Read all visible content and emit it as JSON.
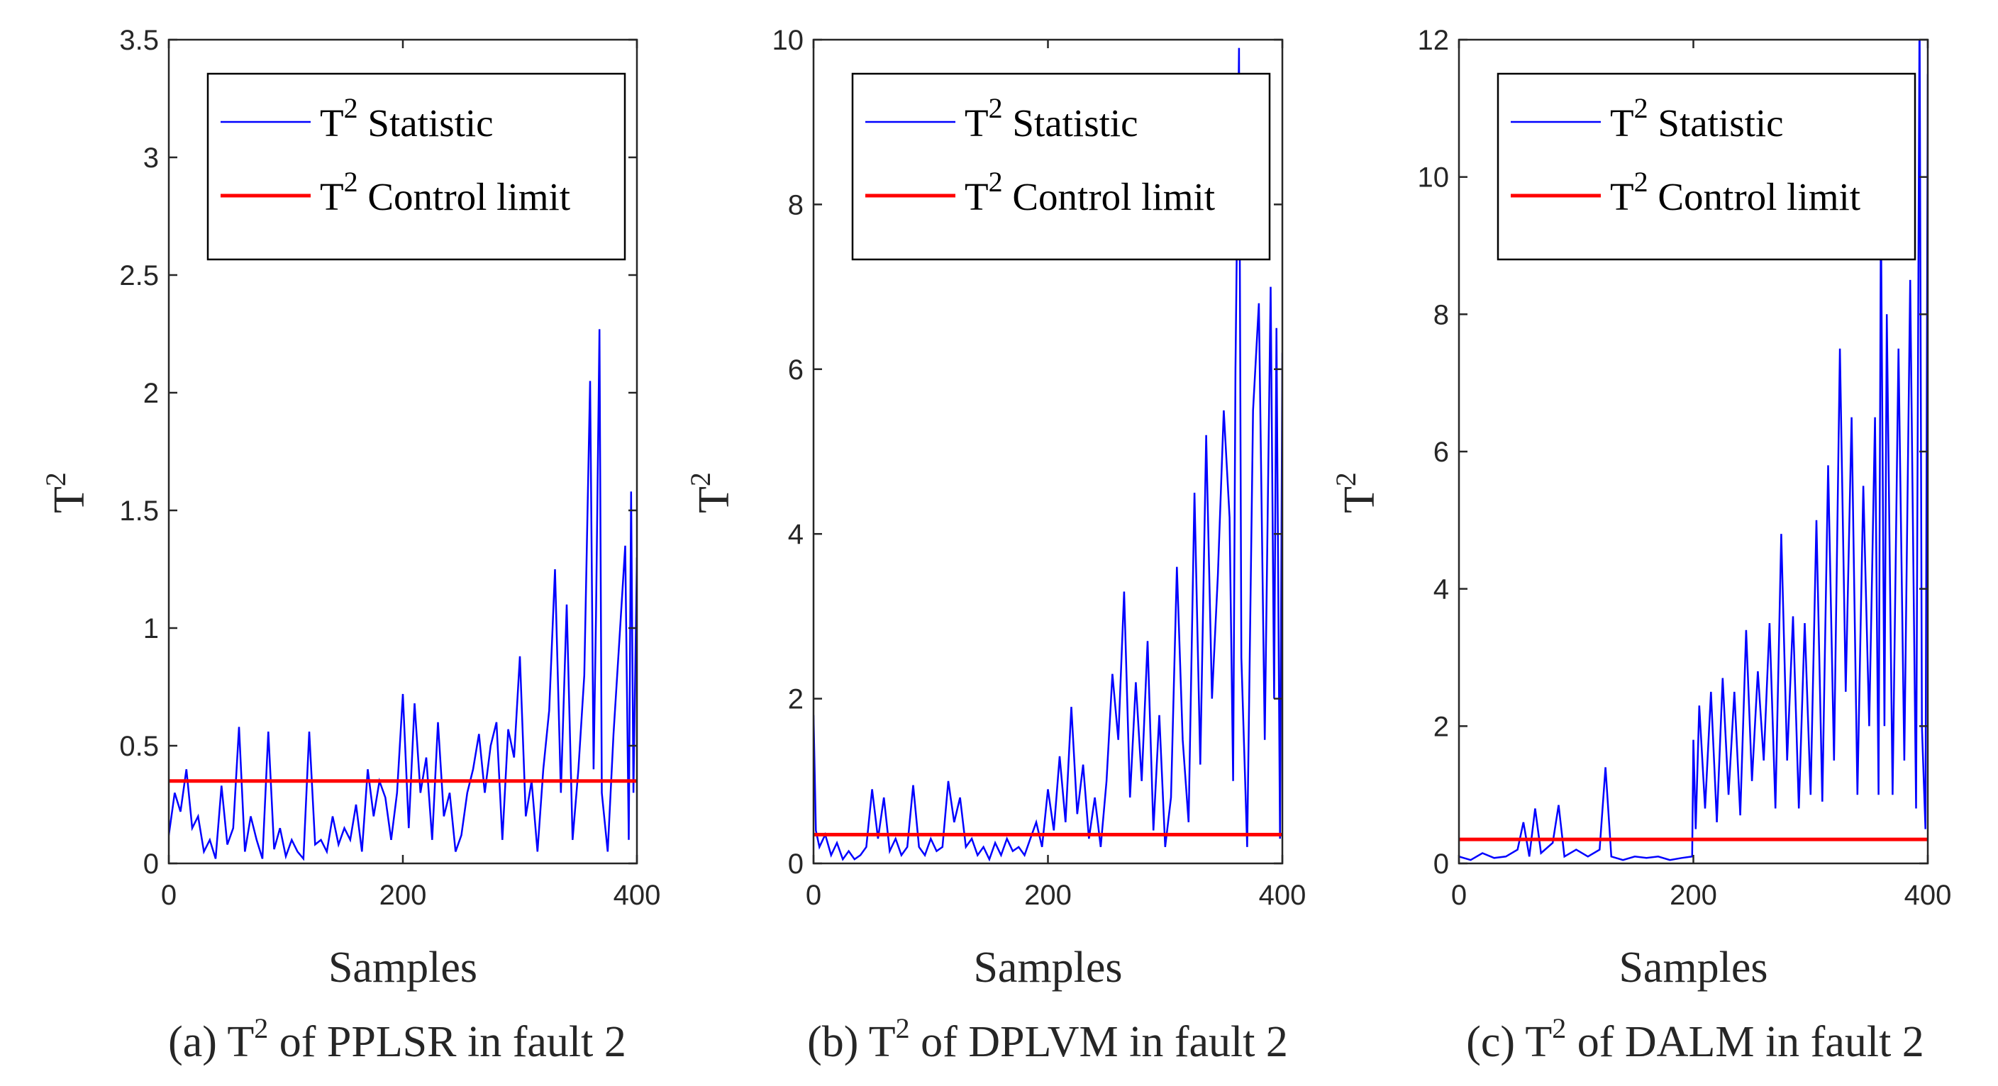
{
  "legend": {
    "statistic_label": "Statistic",
    "limit_label": "Control limit",
    "symbol": "T",
    "superscript": "2"
  },
  "colors": {
    "statistic": "#0000ff",
    "limit": "#ff0000",
    "axis": "#262626"
  },
  "chart_data": [
    {
      "type": "line",
      "caption_prefix": "(a) T",
      "caption_sup": "2",
      "caption_suffix": " of PPLSR in fault 2",
      "xlabel": "Samples",
      "ylabel": "T",
      "ylabel_sup": "2",
      "xlim": [
        0,
        400
      ],
      "ylim": [
        0,
        3.5
      ],
      "xticks": [
        0,
        200,
        400
      ],
      "yticks": [
        0,
        0.5,
        1,
        1.5,
        2,
        2.5,
        3,
        3.5
      ],
      "ytick_labels": [
        "0",
        "0.5",
        "1",
        "1.5",
        "2",
        "2.5",
        "3",
        "3.5"
      ],
      "control_limit": 0.35,
      "series": [
        {
          "name": "T² Statistic",
          "x": [
            0,
            5,
            10,
            15,
            20,
            25,
            30,
            35,
            40,
            45,
            50,
            55,
            60,
            65,
            70,
            75,
            80,
            85,
            90,
            95,
            100,
            105,
            110,
            115,
            120,
            125,
            130,
            135,
            140,
            145,
            150,
            155,
            160,
            165,
            170,
            175,
            180,
            185,
            190,
            195,
            200,
            205,
            210,
            215,
            220,
            225,
            230,
            235,
            240,
            245,
            250,
            255,
            260,
            265,
            270,
            275,
            280,
            285,
            290,
            295,
            300,
            305,
            310,
            315,
            320,
            325,
            330,
            335,
            340,
            345,
            350,
            355,
            360,
            363,
            365,
            368,
            370,
            375,
            380,
            385,
            390,
            393,
            395,
            397,
            400
          ],
          "y": [
            0.12,
            0.3,
            0.22,
            0.4,
            0.15,
            0.2,
            0.05,
            0.1,
            0.02,
            0.33,
            0.08,
            0.15,
            0.58,
            0.05,
            0.2,
            0.1,
            0.02,
            0.56,
            0.06,
            0.15,
            0.03,
            0.1,
            0.05,
            0.02,
            0.56,
            0.08,
            0.1,
            0.05,
            0.2,
            0.08,
            0.15,
            0.1,
            0.25,
            0.05,
            0.4,
            0.2,
            0.35,
            0.28,
            0.1,
            0.3,
            0.72,
            0.15,
            0.68,
            0.3,
            0.45,
            0.1,
            0.6,
            0.2,
            0.3,
            0.05,
            0.12,
            0.3,
            0.4,
            0.55,
            0.3,
            0.5,
            0.6,
            0.1,
            0.57,
            0.45,
            0.88,
            0.2,
            0.35,
            0.05,
            0.4,
            0.65,
            1.25,
            0.3,
            1.1,
            0.1,
            0.4,
            0.8,
            2.05,
            0.4,
            1.05,
            2.27,
            0.3,
            0.05,
            0.55,
            0.95,
            1.35,
            0.1,
            1.58,
            0.3,
            1.3
          ]
        }
      ]
    },
    {
      "type": "line",
      "caption_prefix": "(b) T",
      "caption_sup": "2",
      "caption_suffix": " of DPLVM in fault 2",
      "xlabel": "Samples",
      "ylabel": "T",
      "ylabel_sup": "2",
      "xlim": [
        0,
        400
      ],
      "ylim": [
        0,
        10
      ],
      "xticks": [
        0,
        200,
        400
      ],
      "yticks": [
        0,
        2,
        4,
        6,
        8,
        10
      ],
      "ytick_labels": [
        "0",
        "2",
        "4",
        "6",
        "8",
        "10"
      ],
      "control_limit": 0.35,
      "series": [
        {
          "name": "T² Statistic",
          "x": [
            0,
            2,
            5,
            10,
            15,
            20,
            25,
            30,
            35,
            40,
            45,
            50,
            55,
            60,
            65,
            70,
            75,
            80,
            85,
            90,
            95,
            100,
            105,
            110,
            115,
            120,
            125,
            130,
            135,
            140,
            145,
            150,
            155,
            160,
            165,
            170,
            175,
            180,
            185,
            190,
            195,
            200,
            205,
            210,
            215,
            220,
            225,
            230,
            235,
            240,
            245,
            250,
            255,
            260,
            265,
            270,
            275,
            280,
            285,
            290,
            295,
            300,
            305,
            310,
            315,
            320,
            325,
            330,
            335,
            340,
            345,
            350,
            355,
            358,
            360,
            363,
            365,
            370,
            375,
            380,
            385,
            390,
            393,
            395,
            398,
            400
          ],
          "y": [
            1.8,
            0.4,
            0.2,
            0.35,
            0.1,
            0.25,
            0.05,
            0.15,
            0.05,
            0.1,
            0.2,
            0.9,
            0.3,
            0.8,
            0.15,
            0.3,
            0.1,
            0.2,
            0.95,
            0.2,
            0.1,
            0.3,
            0.15,
            0.2,
            1.0,
            0.5,
            0.8,
            0.2,
            0.3,
            0.1,
            0.2,
            0.05,
            0.25,
            0.1,
            0.3,
            0.15,
            0.2,
            0.1,
            0.3,
            0.5,
            0.2,
            0.9,
            0.4,
            1.3,
            0.5,
            1.9,
            0.6,
            1.2,
            0.3,
            0.8,
            0.2,
            1.0,
            2.3,
            1.5,
            3.3,
            0.8,
            2.2,
            1.0,
            2.7,
            0.4,
            1.8,
            0.2,
            0.8,
            3.6,
            1.5,
            0.5,
            4.5,
            1.2,
            5.2,
            2.0,
            3.5,
            5.5,
            4.2,
            1.0,
            6.0,
            9.9,
            2.5,
            0.2,
            5.5,
            6.8,
            1.5,
            7.0,
            2.0,
            6.5,
            0.3,
            6.2
          ]
        }
      ]
    },
    {
      "type": "line",
      "caption_prefix": "(c) T",
      "caption_sup": "2",
      "caption_suffix": " of DALM in fault 2",
      "xlabel": "Samples",
      "ylabel": "T",
      "ylabel_sup": "2",
      "xlim": [
        0,
        400
      ],
      "ylim": [
        0,
        12
      ],
      "xticks": [
        0,
        200,
        400
      ],
      "yticks": [
        0,
        2,
        4,
        6,
        8,
        10,
        12
      ],
      "ytick_labels": [
        "0",
        "2",
        "4",
        "6",
        "8",
        "10",
        "12"
      ],
      "control_limit": 0.35,
      "series": [
        {
          "name": "T² Statistic",
          "x": [
            0,
            10,
            20,
            30,
            40,
            50,
            55,
            60,
            65,
            70,
            80,
            85,
            90,
            100,
            110,
            120,
            125,
            130,
            140,
            150,
            160,
            170,
            180,
            190,
            199,
            200,
            202,
            205,
            210,
            215,
            220,
            225,
            230,
            235,
            240,
            245,
            250,
            255,
            260,
            265,
            270,
            275,
            280,
            285,
            290,
            295,
            300,
            305,
            310,
            315,
            320,
            325,
            330,
            335,
            340,
            345,
            350,
            355,
            358,
            360,
            363,
            365,
            370,
            375,
            380,
            385,
            390,
            393,
            395,
            398,
            400
          ],
          "y": [
            0.1,
            0.05,
            0.15,
            0.08,
            0.1,
            0.2,
            0.6,
            0.1,
            0.8,
            0.15,
            0.3,
            0.85,
            0.1,
            0.2,
            0.1,
            0.2,
            1.4,
            0.1,
            0.05,
            0.1,
            0.08,
            0.1,
            0.05,
            0.08,
            0.1,
            1.8,
            0.5,
            2.3,
            0.8,
            2.5,
            0.6,
            2.7,
            1.0,
            2.5,
            0.7,
            3.4,
            1.2,
            2.8,
            1.5,
            3.5,
            0.8,
            4.8,
            1.5,
            3.6,
            0.8,
            3.5,
            1.0,
            5.0,
            0.9,
            5.8,
            1.5,
            7.5,
            2.5,
            6.5,
            1.0,
            5.5,
            2.0,
            6.5,
            1.0,
            9.5,
            2.0,
            8.0,
            1.0,
            7.5,
            1.5,
            8.5,
            0.8,
            12.5,
            2.0,
            0.5,
            11.5
          ]
        }
      ]
    }
  ]
}
